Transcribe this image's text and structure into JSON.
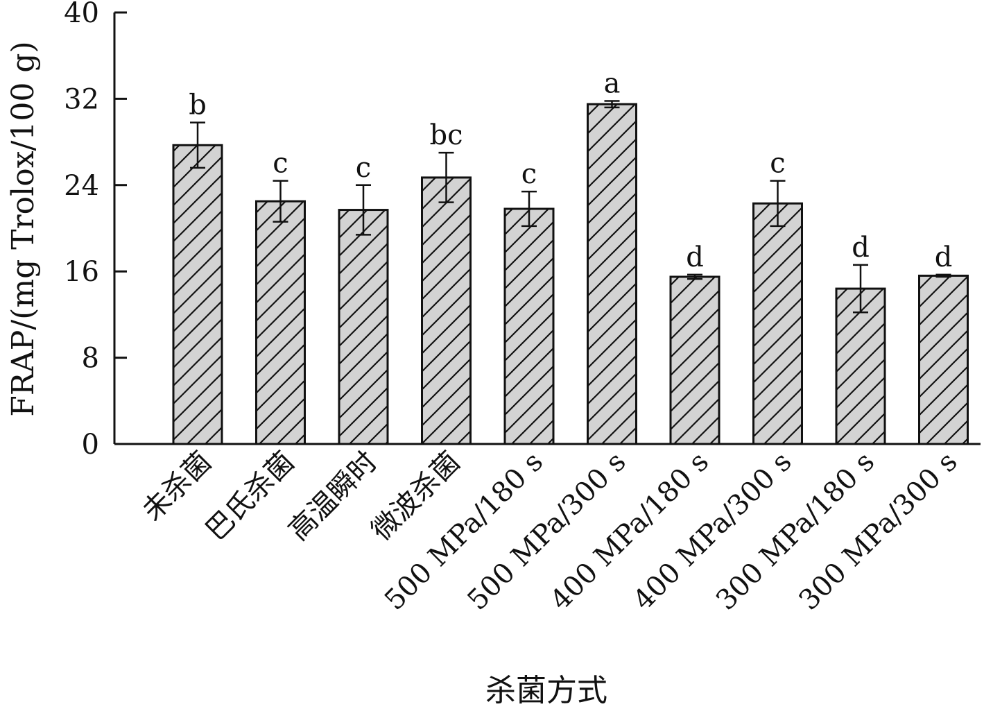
{
  "chart_data": {
    "type": "bar",
    "title": "",
    "xlabel": "杀菌方式",
    "ylabel": "FRAP/(mg Trolox/100 g)",
    "ylim": [
      0,
      40
    ],
    "yticks": [
      0,
      8,
      16,
      24,
      32,
      40
    ],
    "grid": false,
    "categories": [
      "未杀菌",
      "巴氏杀菌",
      "高温瞬时",
      "微波杀菌",
      "500 MPa/180 s",
      "500 MPa/300 s",
      "400 MPa/180 s",
      "400 MPa/300 s",
      "300 MPa/180 s",
      "300 MPa/300 s"
    ],
    "values": [
      27.7,
      22.5,
      21.7,
      24.7,
      21.8,
      31.5,
      15.5,
      22.3,
      14.4,
      15.6
    ],
    "errors": [
      2.1,
      1.9,
      2.3,
      2.3,
      1.6,
      0.3,
      0.2,
      2.1,
      2.2,
      0.1
    ],
    "significance": [
      "b",
      "c",
      "c",
      "bc",
      "c",
      "a",
      "d",
      "c",
      "d",
      "d"
    ],
    "bar_fill": "#d3d3d3",
    "hatch": "diagonal",
    "stroke_color": "#111111"
  }
}
